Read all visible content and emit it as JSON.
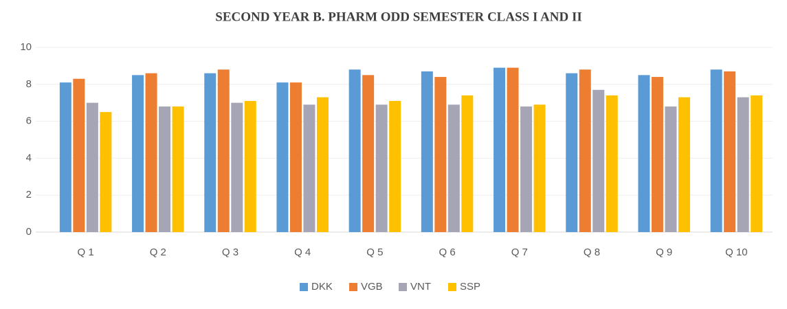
{
  "chart_data": {
    "type": "bar",
    "title": "SECOND YEAR B. PHARM ODD SEMESTER CLASS I AND II",
    "categories": [
      "Q 1",
      "Q 2",
      "Q 3",
      "Q 4",
      "Q 5",
      "Q 6",
      "Q 7",
      "Q 8",
      "Q 9",
      "Q 10"
    ],
    "series": [
      {
        "name": "DKK",
        "color": "#5b9bd5",
        "values": [
          8.1,
          8.5,
          8.6,
          8.1,
          8.8,
          8.7,
          8.9,
          8.6,
          8.5,
          8.8
        ]
      },
      {
        "name": "VGB",
        "color": "#ed7d31",
        "values": [
          8.3,
          8.6,
          8.8,
          8.1,
          8.5,
          8.4,
          8.9,
          8.8,
          8.4,
          8.7
        ]
      },
      {
        "name": "VNT",
        "color": "#a5a5b5",
        "values": [
          7.0,
          6.8,
          7.0,
          6.9,
          6.9,
          6.9,
          6.8,
          7.7,
          6.8,
          7.3
        ]
      },
      {
        "name": "SSP",
        "color": "#ffc000",
        "values": [
          6.5,
          6.8,
          7.1,
          7.3,
          7.1,
          7.4,
          6.9,
          7.4,
          7.3,
          7.4
        ]
      }
    ],
    "ylim": [
      0,
      10
    ],
    "yticks": [
      0,
      2,
      4,
      6,
      8,
      10
    ],
    "grid": true,
    "legend": "bottom"
  }
}
